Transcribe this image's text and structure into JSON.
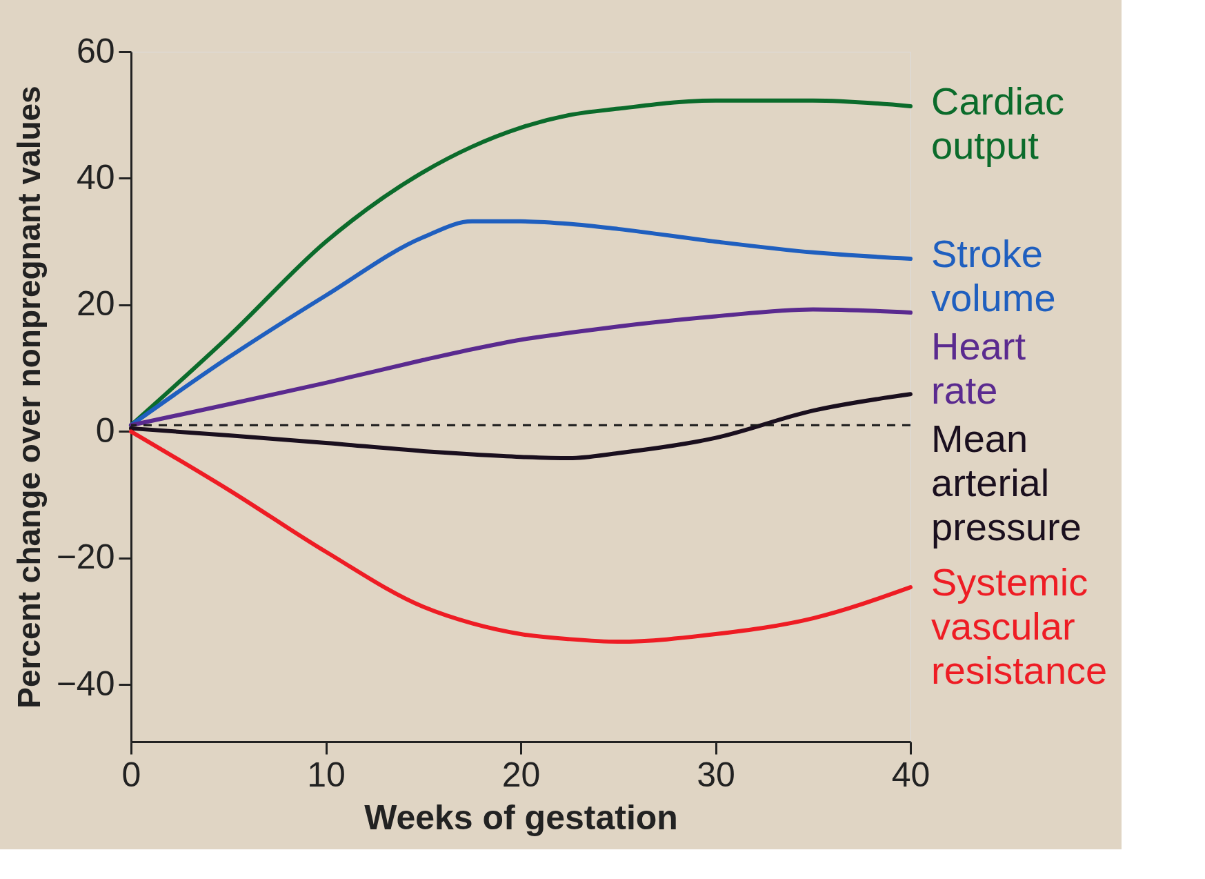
{
  "chart_data": {
    "type": "line",
    "xlabel": "Weeks of gestation",
    "ylabel": "Percent change over nonpregnant values",
    "x": [
      0,
      5,
      10,
      15,
      17.5,
      20,
      22.5,
      25,
      30,
      35,
      40
    ],
    "xlim": [
      0,
      40
    ],
    "xticks": [
      0,
      10,
      20,
      30,
      40
    ],
    "ylim": [
      -49,
      60
    ],
    "yticks": [
      60,
      40,
      20,
      0,
      -20,
      -40
    ],
    "grid": false,
    "legend": false,
    "line_style": "solid",
    "marker": "none",
    "series": [
      {
        "name": "Cardiac output",
        "color": "#0b6b2b",
        "values": [
          1,
          15,
          30,
          41,
          45,
          48,
          50,
          51,
          52.3,
          52.3,
          51.4
        ]
      },
      {
        "name": "Stroke volume",
        "color": "#1f5fbf",
        "values": [
          1,
          11.7,
          21.5,
          30.7,
          33.2,
          33.2,
          32.8,
          32,
          30,
          28.3,
          27.3
        ]
      },
      {
        "name": "Heart rate",
        "color": "#5a2a8f",
        "values": [
          1,
          4.3,
          7.7,
          11.3,
          13,
          14.5,
          15.6,
          16.6,
          18.2,
          19.3,
          18.8
        ]
      },
      {
        "name": "Mean arterial pressure",
        "color": "#1a0f1e",
        "values": [
          0.5,
          -0.6,
          -1.8,
          -3.1,
          -3.6,
          -4,
          -4.2,
          -3.4,
          -1,
          3.3,
          5.9
        ]
      },
      {
        "name": "Systemic vascular resistance",
        "color": "#ee1c24",
        "values": [
          0,
          -9.2,
          -19,
          -27.7,
          -30.3,
          -32,
          -32.8,
          -33.2,
          -32,
          -29.5,
          -24.6
        ]
      }
    ],
    "ref_lines": [
      {
        "axis": "y",
        "value": 1,
        "line_style": "dashed",
        "color": "#1a1a1a"
      }
    ]
  }
}
